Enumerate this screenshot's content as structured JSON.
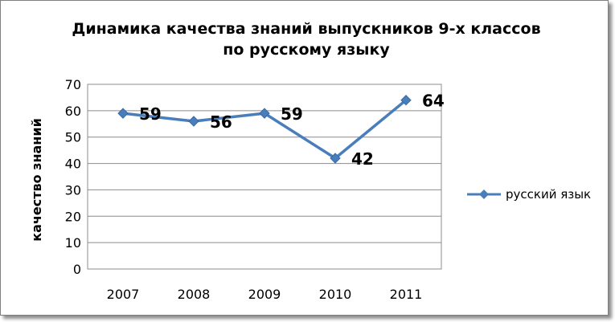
{
  "chart_data": {
    "type": "line",
    "title": "Динамика качества знаний выпускников 9-х классов по русскому языку",
    "title_lines": [
      "Динамика качества знаний выпускников 9-х классов",
      "по русскому языку"
    ],
    "xlabel": "",
    "ylabel": "качество знаний",
    "categories": [
      "2007",
      "2008",
      "2009",
      "2010",
      "2011"
    ],
    "series": [
      {
        "name": "русский язык",
        "values": [
          59,
          56,
          59,
          42,
          64
        ],
        "color": "#4a7ebb",
        "marker": "diamond"
      }
    ],
    "ylim": [
      0,
      70
    ],
    "yticks": [
      "0",
      "10",
      "20",
      "30",
      "40",
      "50",
      "60",
      "70"
    ],
    "data_labels": [
      "59",
      "56",
      "59",
      "42",
      "64"
    ],
    "grid": true,
    "legend_position": "right"
  }
}
